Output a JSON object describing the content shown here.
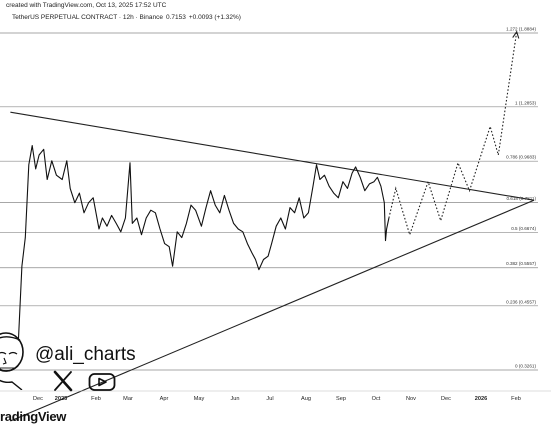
{
  "header": {
    "created_line": "created with TradingView.com, Oct 13, 2025 17:52 UTC",
    "symbol": "TetherUS PERPETUAL CONTRACT · 12h · Binance",
    "price": "0.7153",
    "change": "+0.0093 (+1.32%)"
  },
  "branding": {
    "watermark": "radingView",
    "handle": "@ali_charts",
    "icons": [
      "avatar-caricature",
      "x-logo-icon",
      "youtube-icon"
    ]
  },
  "chart_data": {
    "type": "line",
    "x_ticks": [
      "Dec",
      "2025",
      "Feb",
      "Mar",
      "Apr",
      "May",
      "Jun",
      "Jul",
      "Aug",
      "Sep",
      "Oct",
      "Nov",
      "Dec",
      "2026",
      "Feb"
    ],
    "fib_levels": [
      {
        "label": "1.272 (1.8884)",
        "ratio": 1.272,
        "price": 1.8884
      },
      {
        "label": "1 (1.2853)",
        "ratio": 1,
        "price": 1.2853
      },
      {
        "label": "0.786 (0.9683)",
        "ratio": 0.786,
        "price": 0.9683
      },
      {
        "label": "0.618 (0.7811)",
        "ratio": 0.618,
        "price": 0.7811
      },
      {
        "label": "0.5 (0.6674)",
        "ratio": 0.5,
        "price": 0.6674
      },
      {
        "label": "0.382 (0.5557)",
        "ratio": 0.382,
        "price": 0.5557
      },
      {
        "label": "0.236 (0.4557)",
        "ratio": 0.236,
        "price": 0.4557
      },
      {
        "label": "0 (0.3261)",
        "ratio": 0,
        "price": 0.3261
      }
    ],
    "price_series": [
      [
        "2024-11-25",
        0.38
      ],
      [
        "2024-11-28",
        0.56
      ],
      [
        "2024-12-01",
        0.65
      ],
      [
        "2024-12-04",
        0.95
      ],
      [
        "2024-12-07",
        1.05
      ],
      [
        "2024-12-10",
        0.93
      ],
      [
        "2024-12-13",
        1.0
      ],
      [
        "2024-12-17",
        1.03
      ],
      [
        "2024-12-20",
        0.88
      ],
      [
        "2024-12-24",
        0.97
      ],
      [
        "2024-12-28",
        0.9
      ],
      [
        "2025-01-02",
        0.88
      ],
      [
        "2025-01-06",
        0.97
      ],
      [
        "2025-01-09",
        0.84
      ],
      [
        "2025-01-13",
        0.78
      ],
      [
        "2025-01-17",
        0.82
      ],
      [
        "2025-01-21",
        0.74
      ],
      [
        "2025-01-25",
        0.78
      ],
      [
        "2025-01-29",
        0.8
      ],
      [
        "2025-02-03",
        0.68
      ],
      [
        "2025-02-06",
        0.72
      ],
      [
        "2025-02-10",
        0.69
      ],
      [
        "2025-02-14",
        0.73
      ],
      [
        "2025-02-18",
        0.7
      ],
      [
        "2025-02-22",
        0.67
      ],
      [
        "2025-02-26",
        0.72
      ],
      [
        "2025-03-02",
        0.96
      ],
      [
        "2025-03-04",
        0.7
      ],
      [
        "2025-03-08",
        0.72
      ],
      [
        "2025-03-12",
        0.66
      ],
      [
        "2025-03-16",
        0.72
      ],
      [
        "2025-03-20",
        0.75
      ],
      [
        "2025-03-24",
        0.74
      ],
      [
        "2025-03-28",
        0.68
      ],
      [
        "2025-04-01",
        0.63
      ],
      [
        "2025-04-05",
        0.62
      ],
      [
        "2025-04-08",
        0.56
      ],
      [
        "2025-04-12",
        0.67
      ],
      [
        "2025-04-16",
        0.65
      ],
      [
        "2025-04-20",
        0.7
      ],
      [
        "2025-04-24",
        0.77
      ],
      [
        "2025-04-28",
        0.75
      ],
      [
        "2025-05-03",
        0.69
      ],
      [
        "2025-05-07",
        0.76
      ],
      [
        "2025-05-11",
        0.83
      ],
      [
        "2025-05-15",
        0.77
      ],
      [
        "2025-05-19",
        0.74
      ],
      [
        "2025-05-23",
        0.81
      ],
      [
        "2025-05-27",
        0.75
      ],
      [
        "2025-05-31",
        0.7
      ],
      [
        "2025-06-04",
        0.68
      ],
      [
        "2025-06-08",
        0.67
      ],
      [
        "2025-06-12",
        0.63
      ],
      [
        "2025-06-16",
        0.6
      ],
      [
        "2025-06-19",
        0.58
      ],
      [
        "2025-06-22",
        0.55
      ],
      [
        "2025-06-26",
        0.58
      ],
      [
        "2025-06-30",
        0.59
      ],
      [
        "2025-07-03",
        0.63
      ],
      [
        "2025-07-07",
        0.69
      ],
      [
        "2025-07-11",
        0.72
      ],
      [
        "2025-07-15",
        0.68
      ],
      [
        "2025-07-19",
        0.76
      ],
      [
        "2025-07-23",
        0.74
      ],
      [
        "2025-07-27",
        0.8
      ],
      [
        "2025-07-31",
        0.72
      ],
      [
        "2025-08-04",
        0.74
      ],
      [
        "2025-08-08",
        0.85
      ],
      [
        "2025-08-11",
        0.95
      ],
      [
        "2025-08-14",
        0.88
      ],
      [
        "2025-08-18",
        0.9
      ],
      [
        "2025-08-22",
        0.85
      ],
      [
        "2025-08-26",
        0.82
      ],
      [
        "2025-08-30",
        0.8
      ],
      [
        "2025-09-03",
        0.87
      ],
      [
        "2025-09-07",
        0.84
      ],
      [
        "2025-09-11",
        0.91
      ],
      [
        "2025-09-14",
        0.94
      ],
      [
        "2025-09-18",
        0.89
      ],
      [
        "2025-09-22",
        0.83
      ],
      [
        "2025-09-26",
        0.86
      ],
      [
        "2025-09-30",
        0.87
      ],
      [
        "2025-10-03",
        0.89
      ],
      [
        "2025-10-06",
        0.85
      ],
      [
        "2025-10-09",
        0.78
      ],
      [
        "2025-10-10",
        0.64
      ],
      [
        "2025-10-11",
        0.68
      ],
      [
        "2025-10-13",
        0.72
      ]
    ],
    "projection": [
      [
        "2025-10-13",
        0.72
      ],
      [
        "2025-10-19",
        0.84
      ],
      [
        "2025-10-31",
        0.66
      ],
      [
        "2025-11-16",
        0.87
      ],
      [
        "2025-11-27",
        0.71
      ],
      [
        "2025-12-12",
        0.96
      ],
      [
        "2025-12-22",
        0.83
      ],
      [
        "2026-01-09",
        1.16
      ],
      [
        "2026-01-16",
        1.0
      ],
      [
        "2026-02-01",
        1.9
      ]
    ],
    "triangle": {
      "upper": [
        [
          "2024-11-18",
          1.25
        ],
        [
          "2026-02-16",
          0.79
        ]
      ],
      "lower": [
        [
          "2024-11-18",
          0.25
        ],
        [
          "2026-02-16",
          0.79
        ]
      ]
    },
    "y_scale": "log",
    "xlabel": "",
    "ylabel": "",
    "grid": false
  }
}
